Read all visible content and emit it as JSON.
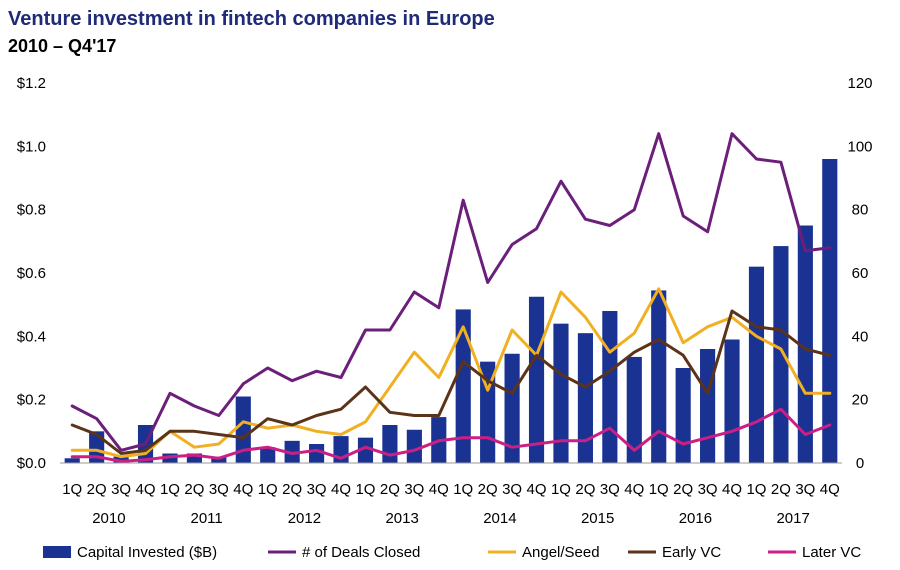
{
  "chart_data": {
    "type": "bar",
    "title": "Venture investment in fintech companies in Europe",
    "subtitle": "2010 – Q4'17",
    "years": [
      "2010",
      "2011",
      "2012",
      "2013",
      "2014",
      "2015",
      "2016",
      "2017"
    ],
    "quarters": [
      "1Q",
      "2Q",
      "3Q",
      "4Q"
    ],
    "y_left": {
      "min": 0,
      "max": 1.2,
      "ticks": [
        "$0.0",
        "$0.2",
        "$0.4",
        "$0.6",
        "$0.8",
        "$1.0",
        "$1.2"
      ]
    },
    "y_right": {
      "min": 0,
      "max": 120,
      "ticks": [
        "0",
        "20",
        "40",
        "60",
        "80",
        "100",
        "120"
      ]
    },
    "grid": false,
    "legend_position": "bottom",
    "series": [
      {
        "name": "Capital Invested ($B)",
        "type": "bar",
        "axis": "left",
        "color": "#1a3393",
        "values": [
          0.015,
          0.1,
          0.02,
          0.12,
          0.03,
          0.03,
          0.02,
          0.21,
          0.05,
          0.07,
          0.06,
          0.085,
          0.08,
          0.12,
          0.105,
          0.145,
          0.485,
          0.32,
          0.345,
          0.525,
          0.44,
          0.41,
          0.48,
          0.335,
          0.545,
          0.3,
          0.36,
          0.39,
          0.62,
          0.685,
          0.75,
          0.96
        ]
      },
      {
        "name": "# of Deals Closed",
        "type": "line",
        "axis": "right",
        "color": "#6b1f7b",
        "values": [
          18,
          14,
          4,
          6,
          22,
          18,
          15,
          25,
          30,
          26,
          29,
          27,
          42,
          42,
          54,
          49,
          83,
          57,
          69,
          74,
          89,
          77,
          75,
          80,
          104,
          78,
          73,
          104,
          96,
          95,
          67,
          68
        ]
      },
      {
        "name": "Angel/Seed",
        "type": "line",
        "axis": "right",
        "color": "#f0b021",
        "values": [
          4,
          4,
          2,
          3,
          10,
          5,
          6,
          13,
          11,
          12,
          10,
          9,
          13,
          24,
          35,
          27,
          43,
          23,
          42,
          34,
          54,
          46,
          35,
          41,
          55,
          38,
          43,
          46,
          40,
          36,
          22,
          22
        ]
      },
      {
        "name": "Early VC",
        "type": "line",
        "axis": "right",
        "color": "#5b3318",
        "values": [
          12,
          9,
          3,
          4,
          10,
          10,
          9,
          8,
          14,
          12,
          15,
          17,
          24,
          16,
          15,
          15,
          32,
          26,
          22,
          34,
          28,
          24,
          29,
          35,
          39,
          34,
          22,
          48,
          43,
          42,
          36,
          34
        ]
      },
      {
        "name": "Later VC",
        "type": "line",
        "axis": "right",
        "color": "#cc1f85",
        "values": [
          2,
          2,
          0.5,
          1,
          2,
          2.5,
          1.5,
          4,
          5,
          3,
          4,
          1.5,
          5,
          2.5,
          4,
          7,
          8,
          8,
          5,
          6,
          7,
          7,
          11,
          4,
          10,
          6,
          8,
          10,
          13,
          17,
          9,
          12
        ]
      }
    ]
  }
}
